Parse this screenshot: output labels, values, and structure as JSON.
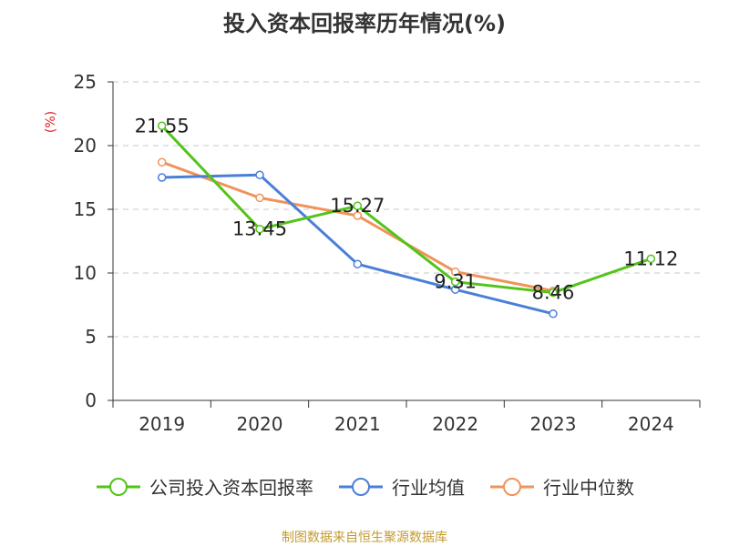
{
  "title": "投入资本回报率历年情况(%)",
  "unit": "(%)",
  "source": "制图数据来自恒生聚源数据库",
  "chart_data": {
    "type": "line",
    "title": "投入资本回报率历年情况(%)",
    "categories": [
      "2019",
      "2020",
      "2021",
      "2022",
      "2023",
      "2024"
    ],
    "ylim": [
      0,
      25
    ],
    "yticks": [
      0,
      5,
      10,
      15,
      20,
      25
    ],
    "grid": true,
    "legend_position": "bottom",
    "series": [
      {
        "name": "公司投入资本回报率",
        "color": "#52c41a",
        "values": [
          21.55,
          13.45,
          15.27,
          9.31,
          8.46,
          11.12
        ],
        "labels": [
          "21.55",
          "13.45",
          "15.27",
          "9.31",
          "8.46",
          "11.12"
        ]
      },
      {
        "name": "行业均值",
        "color": "#4a7fd8",
        "values": [
          17.5,
          17.7,
          10.7,
          8.7,
          6.8,
          null
        ]
      },
      {
        "name": "行业中位数",
        "color": "#f0935a",
        "values": [
          18.7,
          15.9,
          14.5,
          10.1,
          8.6,
          null
        ]
      }
    ]
  }
}
